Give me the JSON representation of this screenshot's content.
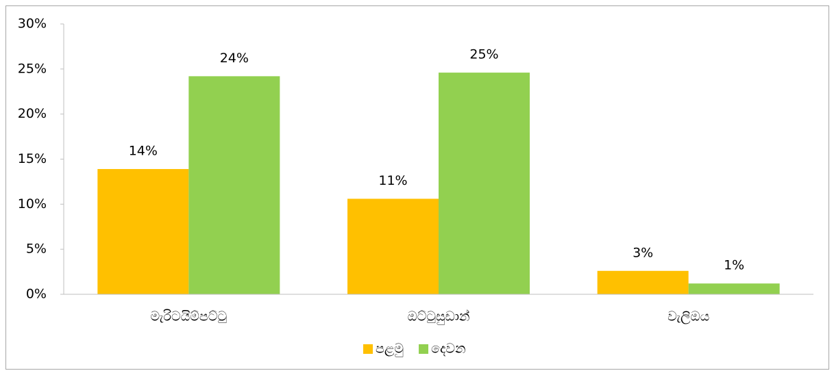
{
  "chart_data": {
    "type": "bar",
    "categories": [
      "මැරිටයිම්පට්ටු",
      "ඔට්ටුසුඩාන්",
      "වැලිඔය"
    ],
    "series": [
      {
        "name": "පළමු",
        "color": "#FFC000",
        "values": [
          13.9,
          10.6,
          2.6
        ],
        "value_labels": [
          "14%",
          "11%",
          "3%"
        ]
      },
      {
        "name": "දෙවන",
        "color": "#92D050",
        "values": [
          24.2,
          24.6,
          1.2
        ],
        "value_labels": [
          "24%",
          "25%",
          "1%"
        ]
      }
    ],
    "ylim": [
      0,
      30
    ],
    "yticks": [
      {
        "value": 0,
        "label": "0%"
      },
      {
        "value": 5,
        "label": "5%"
      },
      {
        "value": 10,
        "label": "10%"
      },
      {
        "value": 15,
        "label": "15%"
      },
      {
        "value": 20,
        "label": "20%"
      },
      {
        "value": 25,
        "label": "25%"
      },
      {
        "value": 30,
        "label": "30%"
      }
    ],
    "grid": false,
    "legend": "bottom"
  }
}
